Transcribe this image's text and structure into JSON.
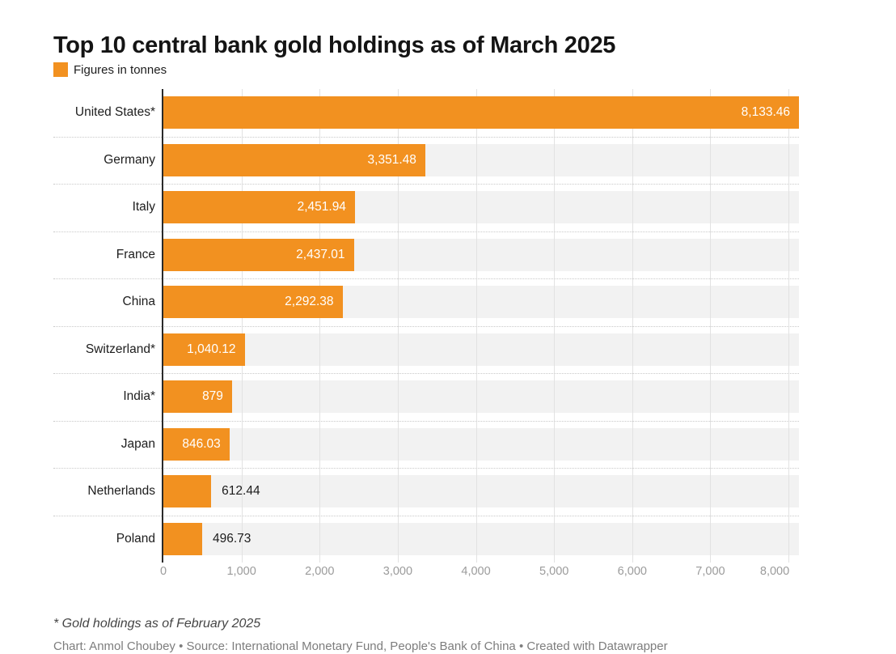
{
  "header": {
    "title": "Top 10 central bank gold holdings as of March 2025",
    "legend_label": "Figures in tonnes"
  },
  "chart_data": {
    "type": "bar",
    "orientation": "horizontal",
    "title": "Top 10 central bank gold holdings as of March 2025",
    "unit": "tonnes",
    "categories": [
      "United States*",
      "Germany",
      "Italy",
      "France",
      "China",
      "Switzerland*",
      "India*",
      "Japan",
      "Netherlands",
      "Poland"
    ],
    "values": [
      8133.46,
      3351.48,
      2451.94,
      2437.01,
      2292.38,
      1040.12,
      879,
      846.03,
      612.44,
      496.73
    ],
    "value_labels": [
      "8,133.46",
      "3,351.48",
      "2,451.94",
      "2,437.01",
      "2,292.38",
      "1,040.12",
      "879",
      "846.03",
      "612.44",
      "496.73"
    ],
    "label_inside": [
      true,
      true,
      true,
      true,
      true,
      true,
      true,
      true,
      false,
      false
    ],
    "xlim": [
      0,
      8133.46
    ],
    "x_ticks": [
      0,
      1000,
      2000,
      3000,
      4000,
      5000,
      6000,
      7000,
      8000
    ],
    "x_tick_labels": [
      "0",
      "1,000",
      "2,000",
      "3,000",
      "4,000",
      "5,000",
      "6,000",
      "7,000",
      "8,000"
    ],
    "grid": "vertical",
    "legend_position": "top-left",
    "colors": {
      "bar": "#F29120",
      "track": "#F2F2F2",
      "gridline": "#E2E2E2",
      "axis_line": "#2A2A2A",
      "tick_text": "#9B9B9B",
      "label_text": "#1D1D1D",
      "value_text_inside": "#FFFFFF"
    }
  },
  "footer": {
    "footnote": "* Gold holdings as of February 2025",
    "credit": "Chart: Anmol Choubey • Source: International Monetary Fund, People's Bank of China • Created with Datawrapper"
  }
}
